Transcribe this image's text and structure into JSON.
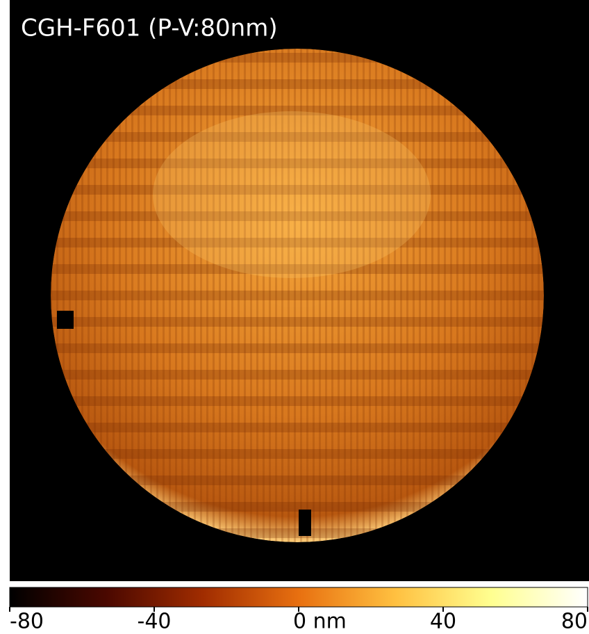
{
  "chart_data": {
    "type": "image",
    "title": "CGH-F601 (P-V:80nm)",
    "clim": [
      -80,
      80
    ],
    "cticks": [
      -80,
      -40,
      {
        "value": 0,
        "label": "0 nm"
      },
      40,
      80
    ],
    "colormap": [
      "#000000",
      "#4a0800",
      "#a02c00",
      "#e87010",
      "#ffc040",
      "#ffff90",
      "#ffffff"
    ]
  }
}
